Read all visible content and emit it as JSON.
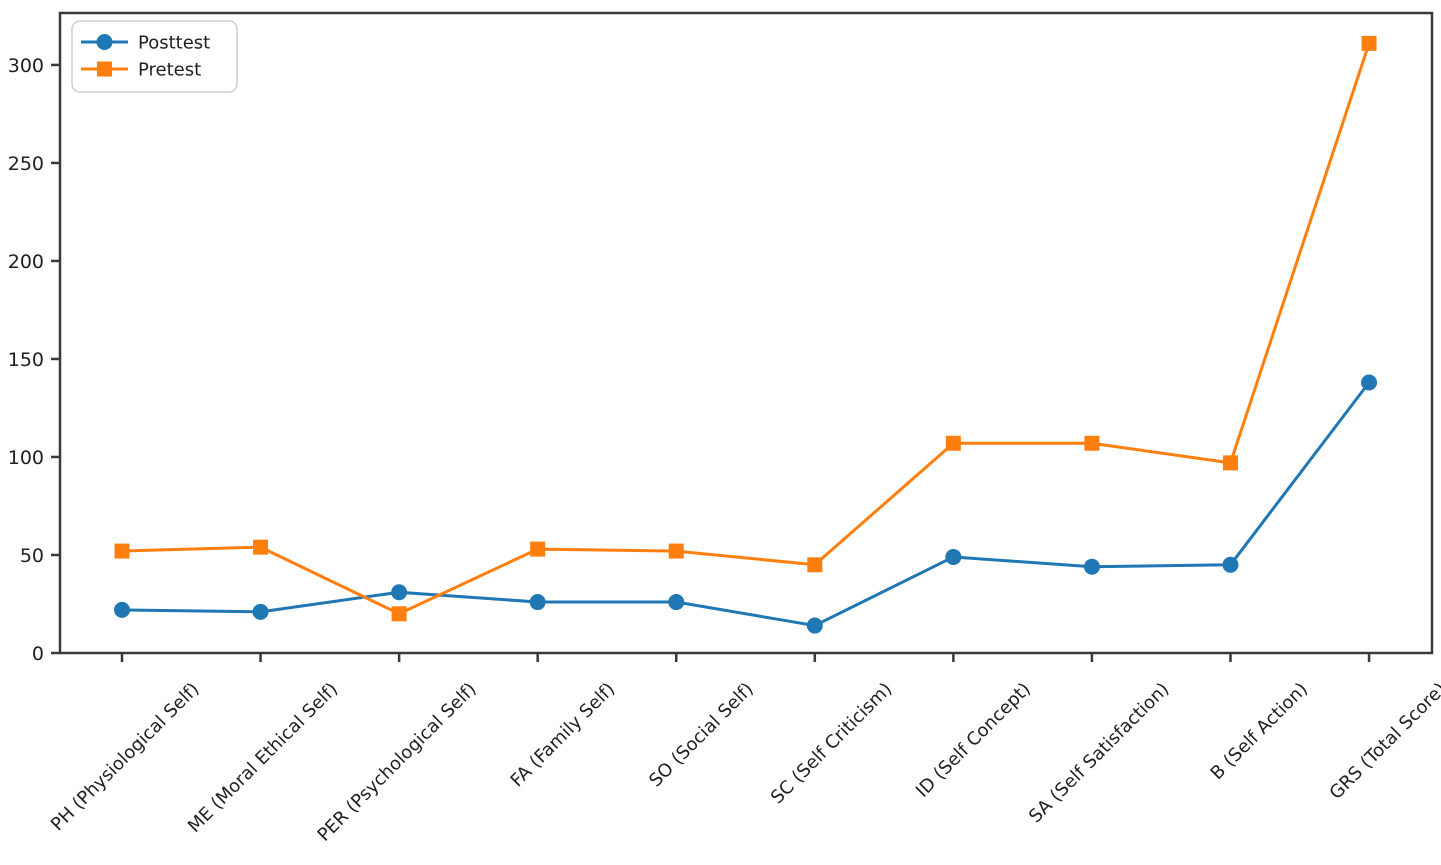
{
  "figure": {
    "background": "#ffffff",
    "text_color": "#1f1f1f",
    "spine_color": "#3a3a3a",
    "legend_border_color": "#cfcfcf"
  },
  "chart_data": {
    "type": "line",
    "title": "",
    "xlabel": "",
    "ylabel": "",
    "categories": [
      "PH (Physiological Self)",
      "ME (Moral Ethical Self)",
      "PER (Psychological Self)",
      "FA (Family Self)",
      "SO (Social Self)",
      "SC (Self Criticism)",
      "ID (Self Concept)",
      "SA (Self Satisfaction)",
      "B (Self Action)",
      "GRS (Total Score)"
    ],
    "series": [
      {
        "name": "Posttest",
        "color": "#1f77b4",
        "marker": "circle",
        "values": [
          22,
          21,
          31,
          26,
          26,
          14,
          49,
          44,
          45,
          138
        ]
      },
      {
        "name": "Pretest",
        "color": "#ff7f0e",
        "marker": "square",
        "values": [
          52,
          54,
          20,
          53,
          52,
          45,
          107,
          107,
          97,
          311
        ]
      }
    ],
    "yticks": [
      0,
      50,
      100,
      150,
      200,
      250,
      300
    ],
    "ylim": [
      0,
      326.5
    ],
    "grid": false,
    "legend_position": "upper left",
    "x_tick_rotation": 45
  }
}
